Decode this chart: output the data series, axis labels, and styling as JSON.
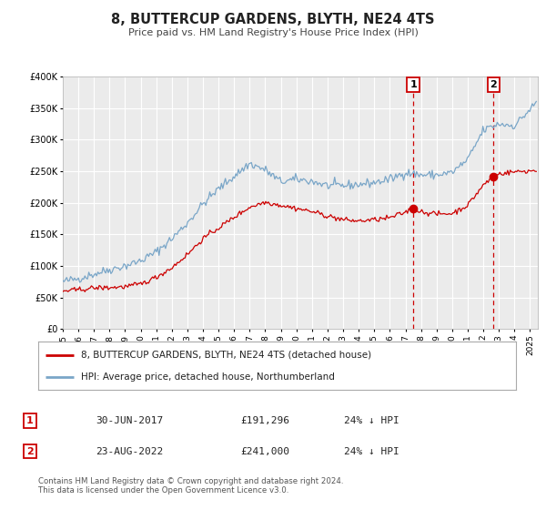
{
  "title": "8, BUTTERCUP GARDENS, BLYTH, NE24 4TS",
  "subtitle": "Price paid vs. HM Land Registry's House Price Index (HPI)",
  "ylim": [
    0,
    400000
  ],
  "xlim_start": 1995.0,
  "xlim_end": 2025.5,
  "background_color": "#ffffff",
  "plot_bg_color": "#ebebeb",
  "grid_color": "#ffffff",
  "red_line_color": "#cc0000",
  "blue_line_color": "#7aa6c8",
  "marker1_date": 2017.5,
  "marker1_value": 191296,
  "marker2_date": 2022.65,
  "marker2_value": 241000,
  "dashed_line_color": "#cc0000",
  "annotation_box_color": "#cc0000",
  "legend_label_red": "8, BUTTERCUP GARDENS, BLYTH, NE24 4TS (detached house)",
  "legend_label_blue": "HPI: Average price, detached house, Northumberland",
  "footer_text": "Contains HM Land Registry data © Crown copyright and database right 2024.\nThis data is licensed under the Open Government Licence v3.0.",
  "table_row1": [
    "1",
    "30-JUN-2017",
    "£191,296",
    "24% ↓ HPI"
  ],
  "table_row2": [
    "2",
    "23-AUG-2022",
    "£241,000",
    "24% ↓ HPI"
  ],
  "ytick_labels": [
    "£0",
    "£50K",
    "£100K",
    "£150K",
    "£200K",
    "£250K",
    "£300K",
    "£350K",
    "£400K"
  ],
  "ytick_values": [
    0,
    50000,
    100000,
    150000,
    200000,
    250000,
    300000,
    350000,
    400000
  ],
  "xtick_years": [
    1995,
    1996,
    1997,
    1998,
    1999,
    2000,
    2001,
    2002,
    2003,
    2004,
    2005,
    2006,
    2007,
    2008,
    2009,
    2010,
    2011,
    2012,
    2013,
    2014,
    2015,
    2016,
    2017,
    2018,
    2019,
    2020,
    2021,
    2022,
    2023,
    2024,
    2025
  ]
}
